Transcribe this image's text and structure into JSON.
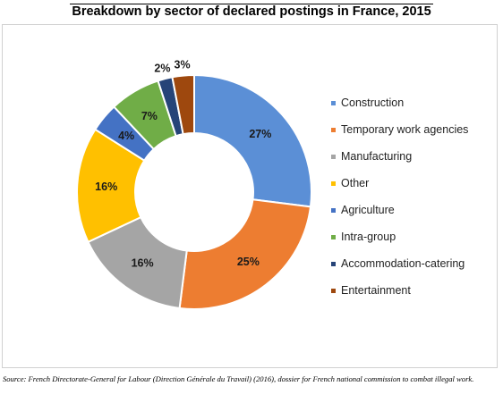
{
  "title": "Breakdown by sector of declared postings in France, 2015",
  "source": "Source: French Directorate-General for Labour (Direction Générale du Travail) (2016), dossier for French national commission to combat illegal work.",
  "chart_data": {
    "type": "pie",
    "donut": true,
    "legend_position": "right",
    "categories": [
      "Construction",
      "Temporary work agencies",
      "Manufacturing",
      "Other",
      "Agriculture",
      "Intra-group",
      "Accommodation-catering",
      "Entertainment"
    ],
    "values": [
      27,
      25,
      16,
      16,
      4,
      7,
      2,
      3
    ],
    "labels": [
      "27%",
      "25%",
      "16%",
      "16%",
      "4%",
      "7%",
      "2%",
      "3%"
    ],
    "colors": [
      "#5b8fd6",
      "#ed7d31",
      "#a5a5a5",
      "#ffc000",
      "#4472c4",
      "#70ad47",
      "#264478",
      "#9e480e"
    ]
  }
}
